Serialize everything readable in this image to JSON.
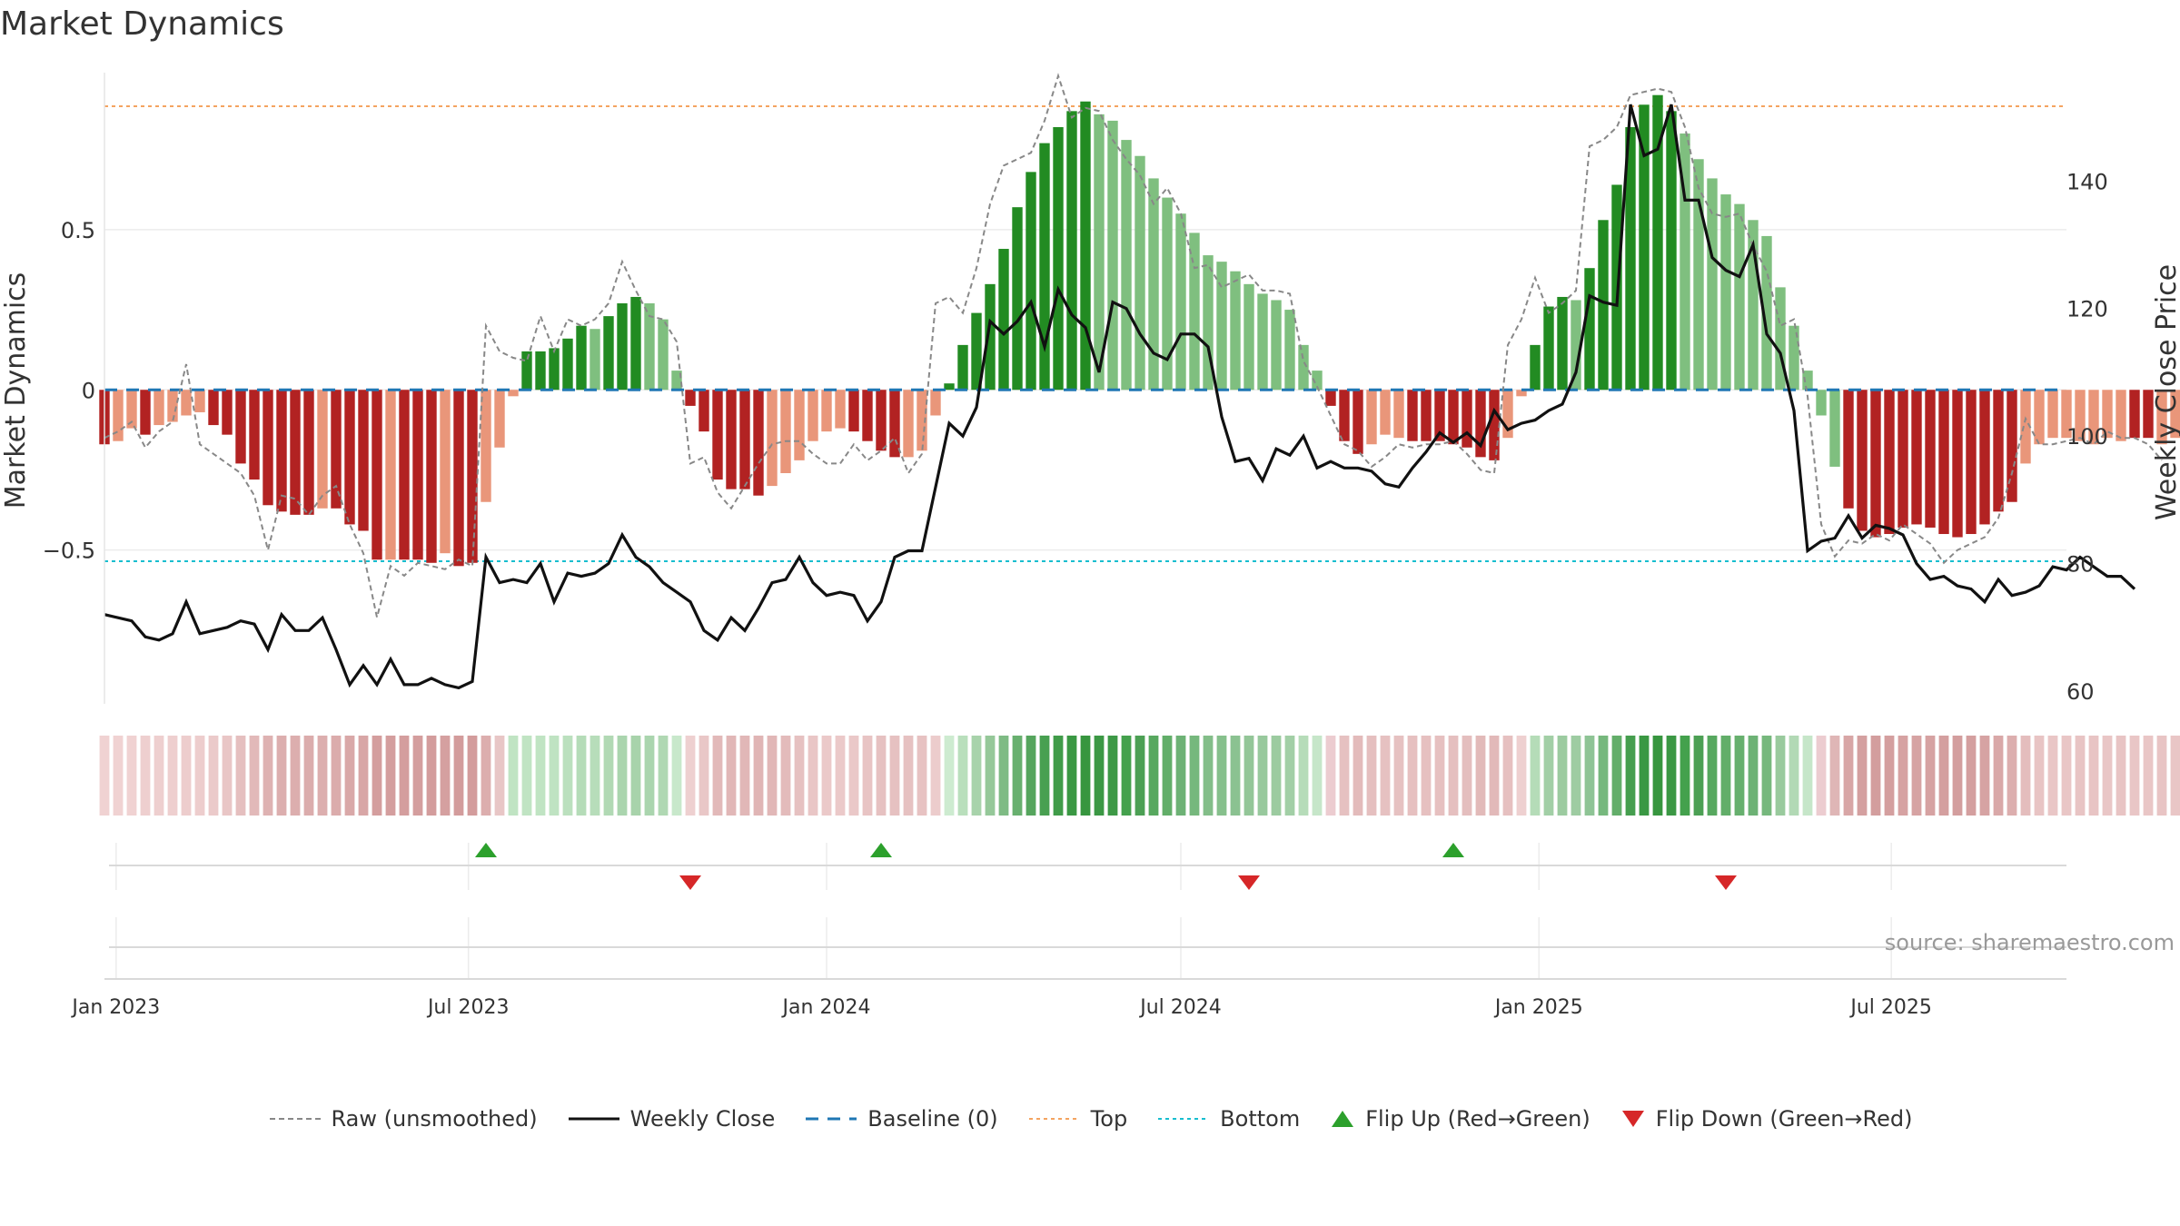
{
  "source_label": "source: sharemaestro.com",
  "colors": {
    "strong_green": "#228b22",
    "light_green": "#7fbf7f",
    "strong_red": "#b22222",
    "light_red": "#e9967a",
    "raw": "#888888",
    "close": "#111111",
    "baseline": "#1f77b4",
    "top": "#f4a460",
    "bottom": "#17becf",
    "flip_up": "#2ca02c",
    "flip_down": "#d62728"
  },
  "legend": {
    "raw": "Raw (unsmoothed)",
    "close": "Weekly Close",
    "baseline": "Baseline (0)",
    "top": "Top",
    "bottom": "Bottom",
    "flip_up": "Flip Up (Red→Green)",
    "flip_down": "Flip Down (Green→Red)"
  },
  "chart_data": {
    "type": "bar",
    "title": "Market Dynamics",
    "ylabel": "Market Dynamics",
    "y2label": "Weekly Close Price",
    "x_start": "2022-12-26",
    "x_end": "2025-09-29",
    "x_ticks": [
      {
        "date": "2023-01-01",
        "label": "Jan 2023"
      },
      {
        "date": "2023-07-01",
        "label": "Jul 2023"
      },
      {
        "date": "2024-01-01",
        "label": "Jan 2024"
      },
      {
        "date": "2024-07-01",
        "label": "Jul 2024"
      },
      {
        "date": "2025-01-01",
        "label": "Jan 2025"
      },
      {
        "date": "2025-07-01",
        "label": "Jul 2025"
      }
    ],
    "ylim": [
      -0.98,
      0.99
    ],
    "y_ticks": [
      {
        "value": 0.5,
        "label": "0.5"
      },
      {
        "value": 0,
        "label": "0"
      },
      {
        "value": -0.5,
        "label": "−0.5"
      }
    ],
    "y2lim": [
      58,
      157
    ],
    "y2_ticks": [
      60,
      80,
      100,
      120,
      140
    ],
    "first_week": "2022-12-26",
    "bars": [
      -0.17,
      -0.16,
      -0.12,
      -0.14,
      -0.11,
      -0.1,
      -0.08,
      -0.07,
      -0.11,
      -0.14,
      -0.23,
      -0.28,
      -0.36,
      -0.38,
      -0.39,
      -0.39,
      -0.37,
      -0.37,
      -0.42,
      -0.44,
      -0.53,
      -0.53,
      -0.53,
      -0.53,
      -0.54,
      -0.51,
      -0.55,
      -0.54,
      -0.35,
      -0.18,
      -0.02,
      0.12,
      0.12,
      0.13,
      0.16,
      0.2,
      0.19,
      0.23,
      0.27,
      0.29,
      0.27,
      0.22,
      0.06,
      -0.05,
      -0.13,
      -0.28,
      -0.31,
      -0.31,
      -0.33,
      -0.3,
      -0.26,
      -0.22,
      -0.16,
      -0.13,
      -0.12,
      -0.13,
      -0.16,
      -0.19,
      -0.21,
      -0.21,
      -0.19,
      -0.08,
      0.02,
      0.14,
      0.24,
      0.33,
      0.44,
      0.57,
      0.68,
      0.77,
      0.82,
      0.87,
      0.9,
      0.86,
      0.84,
      0.78,
      0.73,
      0.66,
      0.6,
      0.55,
      0.49,
      0.42,
      0.4,
      0.37,
      0.33,
      0.3,
      0.28,
      0.25,
      0.14,
      0.06,
      -0.05,
      -0.16,
      -0.2,
      -0.17,
      -0.14,
      -0.15,
      -0.16,
      -0.16,
      -0.16,
      -0.17,
      -0.18,
      -0.21,
      -0.22,
      -0.15,
      -0.02,
      0.14,
      0.26,
      0.29,
      0.28,
      0.38,
      0.53,
      0.64,
      0.82,
      0.89,
      0.92,
      0.87,
      0.8,
      0.72,
      0.66,
      0.61,
      0.58,
      0.53,
      0.48,
      0.32,
      0.2,
      0.06,
      -0.08,
      -0.24,
      -0.37,
      -0.44,
      -0.46,
      -0.45,
      -0.43,
      -0.42,
      -0.43,
      -0.45,
      -0.46,
      -0.45,
      -0.42,
      -0.38,
      -0.35,
      -0.23,
      -0.17,
      -0.15,
      -0.15,
      -0.16,
      -0.17,
      -0.15,
      -0.16,
      -0.15,
      -0.15,
      -0.17,
      -0.15
    ],
    "bar_colors": [
      "strong_red",
      "light_red",
      "light_red",
      "strong_red",
      "light_red",
      "light_red",
      "light_red",
      "light_red",
      "strong_red",
      "strong_red",
      "strong_red",
      "strong_red",
      "strong_red",
      "strong_red",
      "strong_red",
      "strong_red",
      "light_red",
      "strong_red",
      "strong_red",
      "strong_red",
      "strong_red",
      "light_red",
      "strong_red",
      "strong_red",
      "strong_red",
      "light_red",
      "strong_red",
      "strong_red",
      "light_red",
      "light_red",
      "light_red",
      "strong_green",
      "strong_green",
      "strong_green",
      "strong_green",
      "strong_green",
      "light_green",
      "strong_green",
      "strong_green",
      "strong_green",
      "light_green",
      "light_green",
      "light_green",
      "strong_red",
      "strong_red",
      "strong_red",
      "strong_red",
      "strong_red",
      "strong_red",
      "light_red",
      "light_red",
      "light_red",
      "light_red",
      "light_red",
      "light_red",
      "strong_red",
      "strong_red",
      "strong_red",
      "strong_red",
      "light_red",
      "light_red",
      "light_red",
      "strong_green",
      "strong_green",
      "strong_green",
      "strong_green",
      "strong_green",
      "strong_green",
      "strong_green",
      "strong_green",
      "strong_green",
      "strong_green",
      "strong_green",
      "light_green",
      "light_green",
      "light_green",
      "light_green",
      "light_green",
      "light_green",
      "light_green",
      "light_green",
      "light_green",
      "light_green",
      "light_green",
      "light_green",
      "light_green",
      "light_green",
      "light_green",
      "light_green",
      "light_green",
      "strong_red",
      "strong_red",
      "strong_red",
      "light_red",
      "light_red",
      "light_red",
      "strong_red",
      "strong_red",
      "strong_red",
      "strong_red",
      "strong_red",
      "strong_red",
      "strong_red",
      "light_red",
      "light_red",
      "strong_green",
      "strong_green",
      "strong_green",
      "light_green",
      "strong_green",
      "strong_green",
      "strong_green",
      "strong_green",
      "strong_green",
      "strong_green",
      "strong_green",
      "light_green",
      "light_green",
      "light_green",
      "light_green",
      "light_green",
      "light_green",
      "light_green",
      "light_green",
      "light_green",
      "light_green",
      "light_green",
      "light_green",
      "strong_red",
      "strong_red",
      "strong_red",
      "strong_red",
      "strong_red",
      "strong_red",
      "strong_red",
      "strong_red",
      "strong_red",
      "strong_red",
      "strong_red",
      "strong_red",
      "strong_red",
      "light_red",
      "light_red",
      "light_red",
      "light_red",
      "light_red",
      "light_red",
      "light_red",
      "light_red",
      "strong_red",
      "strong_red",
      "light_red",
      "light_red",
      "strong_red",
      "strong_red"
    ],
    "raw": [
      -0.15,
      -0.13,
      -0.1,
      -0.18,
      -0.13,
      -0.1,
      0.08,
      -0.17,
      -0.2,
      -0.23,
      -0.26,
      -0.33,
      -0.5,
      -0.33,
      -0.34,
      -0.39,
      -0.33,
      -0.3,
      -0.42,
      -0.51,
      -0.71,
      -0.55,
      -0.58,
      -0.54,
      -0.55,
      -0.56,
      -0.53,
      -0.55,
      0.2,
      0.12,
      0.1,
      0.09,
      0.23,
      0.12,
      0.22,
      0.2,
      0.22,
      0.27,
      0.4,
      0.31,
      0.23,
      0.22,
      0.15,
      -0.23,
      -0.21,
      -0.32,
      -0.37,
      -0.3,
      -0.23,
      -0.17,
      -0.16,
      -0.16,
      -0.2,
      -0.23,
      -0.23,
      -0.17,
      -0.22,
      -0.19,
      -0.15,
      -0.26,
      -0.2,
      0.27,
      0.29,
      0.24,
      0.38,
      0.58,
      0.7,
      0.72,
      0.74,
      0.84,
      0.98,
      0.85,
      0.88,
      0.87,
      0.78,
      0.72,
      0.67,
      0.58,
      0.63,
      0.55,
      0.38,
      0.39,
      0.32,
      0.34,
      0.36,
      0.31,
      0.31,
      0.3,
      0.09,
      0.01,
      -0.08,
      -0.17,
      -0.19,
      -0.24,
      -0.21,
      -0.17,
      -0.18,
      -0.17,
      -0.17,
      -0.16,
      -0.2,
      -0.25,
      -0.26,
      0.14,
      0.22,
      0.35,
      0.24,
      0.27,
      0.31,
      0.76,
      0.78,
      0.82,
      0.92,
      0.93,
      0.94,
      0.93,
      0.82,
      0.63,
      0.55,
      0.54,
      0.55,
      0.45,
      0.37,
      0.2,
      0.22,
      -0.02,
      -0.42,
      -0.52,
      -0.47,
      -0.48,
      -0.45,
      -0.47,
      -0.42,
      -0.45,
      -0.48,
      -0.54,
      -0.5,
      -0.48,
      -0.46,
      -0.4,
      -0.26,
      -0.09,
      -0.17,
      -0.17,
      -0.16,
      -0.15,
      -0.17,
      -0.13,
      -0.15,
      -0.15,
      -0.17,
      -0.22
    ],
    "close": [
      72,
      71.5,
      71,
      68.5,
      68,
      69,
      74,
      69,
      69.5,
      70,
      71,
      70.5,
      66.5,
      72,
      69.5,
      69.5,
      71.5,
      66.5,
      61,
      64,
      61,
      65,
      61,
      61,
      62,
      61,
      60.5,
      61.5,
      81,
      77,
      77.5,
      77,
      80,
      74,
      78.5,
      78,
      78.5,
      80,
      84.5,
      81,
      79.5,
      77,
      75.5,
      74,
      69.5,
      68,
      71.5,
      69.5,
      73,
      77,
      77.5,
      81,
      77,
      75,
      75.5,
      75,
      71,
      74,
      81,
      82,
      82,
      92,
      102,
      100,
      104.5,
      118,
      116,
      118,
      121,
      114,
      123,
      119,
      117,
      110,
      121,
      120,
      116,
      113,
      112,
      116,
      116,
      114,
      103,
      96,
      96.5,
      93,
      98,
      97,
      100,
      95,
      96,
      95,
      95,
      94.5,
      92.5,
      92,
      95,
      97.5,
      100.5,
      99,
      100.5,
      98.5,
      104,
      101,
      102,
      102.5,
      104,
      105,
      110,
      122,
      121,
      120.5,
      152,
      144,
      145,
      152,
      137,
      137,
      128,
      126,
      125,
      130,
      116,
      113,
      104,
      82,
      83.5,
      84,
      87.5,
      84,
      86,
      85.5,
      84.5,
      80,
      77.5,
      78,
      76.5,
      76,
      74,
      77.5,
      75,
      75.5,
      76.5,
      79.5,
      79,
      81,
      79.5,
      78,
      78,
      76
    ],
    "baseline": 0,
    "top": 0.885,
    "bottom": -0.535,
    "flip_up": [
      "2023-07-10",
      "2024-01-29",
      "2024-11-18"
    ],
    "flip_down": [
      "2023-10-23",
      "2024-08-05",
      "2025-04-07"
    ],
    "strip_colors": [
      "#f0d2d2",
      "#f0d2d2",
      "#f0d2d2",
      "#eecfcf",
      "#eecfcf",
      "#eecfcf",
      "#edcdcd",
      "#edcdcd",
      "#ebcaca",
      "#e9c6c6",
      "#e5bfbf",
      "#e2b9b9",
      "#deb2b2",
      "#dcaeae",
      "#dcaeae",
      "#dbacac",
      "#dcaeae",
      "#dbacac",
      "#d9a8a8",
      "#d8a6a6",
      "#d49e9e",
      "#d49e9e",
      "#d49e9e",
      "#d49e9e",
      "#d39c9c",
      "#d5a0a0",
      "#d39c9c",
      "#d39c9c",
      "#dcaeae",
      "#e8c6c6",
      "#c0e4c3",
      "#c0e4c3",
      "#c0e4c3",
      "#bfe3c2",
      "#bbe0be",
      "#b5dcb8",
      "#b7ddba",
      "#b1d9b4",
      "#aad5ae",
      "#a8d3ab",
      "#aad5ae",
      "#b0d8b3",
      "#c8e8cb",
      "#eed0d0",
      "#e9c7c7",
      "#e2b9b9",
      "#e1b7b7",
      "#e1b7b7",
      "#e0b5b5",
      "#e1b7b7",
      "#e3bbbb",
      "#e6c1c1",
      "#e9c6c6",
      "#ebc9c9",
      "#ebc9c9",
      "#eac8c8",
      "#e8c4c4",
      "#e6c1c1",
      "#e6c1c1",
      "#e6c1c1",
      "#e7c2c2",
      "#eccccc",
      "#cdebd0",
      "#b9dfbc",
      "#a8d3ab",
      "#95c899",
      "#7ebb84",
      "#68b06f",
      "#55a55d",
      "#48a051",
      "#409c49",
      "#3a9843",
      "#37963f",
      "#3b9844",
      "#3d9946",
      "#44a14d",
      "#4ca054",
      "#57a85f",
      "#62ae69",
      "#6db275",
      "#76b87d",
      "#83be89",
      "#86c08c",
      "#8bc291",
      "#93c698",
      "#98c99d",
      "#9ccba0",
      "#a2cfa6",
      "#b6dcb9",
      "#c6e6c9",
      "#ecccd0",
      "#e6c1c1",
      "#e3bbbb",
      "#e5bfbf",
      "#e6c1c1",
      "#e6c1c1",
      "#e6c0c0",
      "#e6c0c0",
      "#e6c0c0",
      "#e5bfbf",
      "#e4bebe",
      "#e2bab9",
      "#e2b9b9",
      "#e6c0c0",
      "#eed0d0",
      "#b5dcb8",
      "#a2cfa6",
      "#9ccba0",
      "#9ecca2",
      "#8ec495",
      "#76b87d",
      "#63ae6a",
      "#459e4e",
      "#3a9843",
      "#37963f",
      "#3b9844",
      "#44a14d",
      "#4ca054",
      "#57a85f",
      "#62ae69",
      "#67b06e",
      "#6db275",
      "#76b87d",
      "#99ca9d",
      "#b2d9b5",
      "#c6e6c9",
      "#ecccd0",
      "#dfb6b6",
      "#d8a6a6",
      "#d4a0a0",
      "#d39e9e",
      "#d49f9f",
      "#d6a2a2",
      "#d6a3a3",
      "#d6a2a2",
      "#d49f9f",
      "#d39e9e",
      "#d49f9f",
      "#d6a3a3",
      "#d9a8a8",
      "#dcaeae",
      "#e4bdbd",
      "#e8c4c4",
      "#e9c6c6",
      "#e9c6c6",
      "#e8c4c4",
      "#e8c4c4",
      "#e9c6c6",
      "#e8c4c4",
      "#e9c6c6",
      "#e9c6c6",
      "#e8c4c4",
      "#e9c6c6"
    ]
  }
}
